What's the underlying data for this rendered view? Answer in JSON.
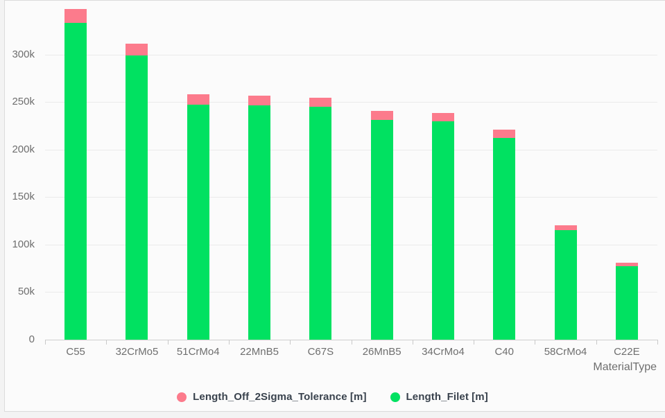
{
  "chart_data": {
    "type": "bar",
    "stacked": true,
    "title": "",
    "xlabel": "MaterialType",
    "ylabel": "",
    "categories": [
      "C55",
      "32CrMo5",
      "51CrMo4",
      "22MnB5",
      "C67S",
      "26MnB5",
      "34CrMo4",
      "C40",
      "58CrMo4",
      "C22E"
    ],
    "series": [
      {
        "name": "Length_Off_2Sigma_Tolerance [m]",
        "color": "#fc7b8c",
        "stack_position": "top",
        "values": [
          14500,
          12500,
          10500,
          10000,
          9500,
          10000,
          8500,
          8500,
          5500,
          3500
        ]
      },
      {
        "name": "Length_Filet [m]",
        "color": "#01e161",
        "stack_position": "bottom",
        "values": [
          333000,
          299000,
          247500,
          246500,
          245000,
          231000,
          230000,
          212500,
          115000,
          77500
        ]
      }
    ],
    "yticks": [
      {
        "value": 0,
        "label": "0"
      },
      {
        "value": 50000,
        "label": "50k"
      },
      {
        "value": 100000,
        "label": "100k"
      },
      {
        "value": 150000,
        "label": "150k"
      },
      {
        "value": 200000,
        "label": "200k"
      },
      {
        "value": 250000,
        "label": "250k"
      },
      {
        "value": 300000,
        "label": "300k"
      }
    ],
    "ylim": [
      0,
      350000
    ],
    "grid": true,
    "legend_position": "bottom"
  },
  "colors": {
    "background": "#fbfbfb",
    "panel_border": "#dbdbdb",
    "gridline": "#eaeaea",
    "axis_line": "#cfcfcf",
    "tick_label": "#6e6e6e",
    "legend_text": "#39424d",
    "series_tolerance": "#fc7b8c",
    "series_filet": "#01e161"
  }
}
